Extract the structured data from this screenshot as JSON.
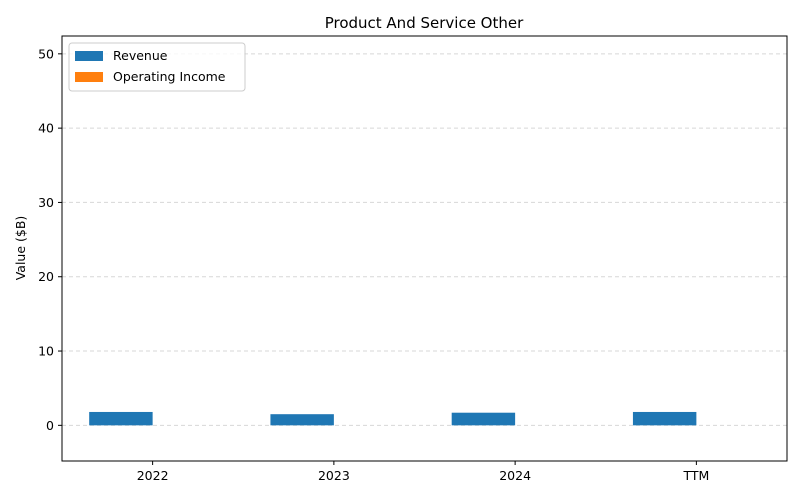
{
  "chart_data": {
    "type": "bar",
    "title": "Product And Service Other",
    "xlabel": "",
    "ylabel": "Value ($B)",
    "categories": [
      "2022",
      "2023",
      "2024",
      "TTM"
    ],
    "series": [
      {
        "name": "Revenue",
        "color": "#1f77b4",
        "values": [
          1.8,
          1.5,
          1.7,
          1.8
        ]
      },
      {
        "name": "Operating Income",
        "color": "#ff7f0e",
        "values": [
          0,
          0,
          0,
          0
        ]
      }
    ],
    "ylim": [
      -4.8,
      52.4
    ],
    "yticks": [
      0,
      10,
      20,
      30,
      40,
      50
    ],
    "grid": "y-dashed",
    "legend_position": "top-left"
  }
}
